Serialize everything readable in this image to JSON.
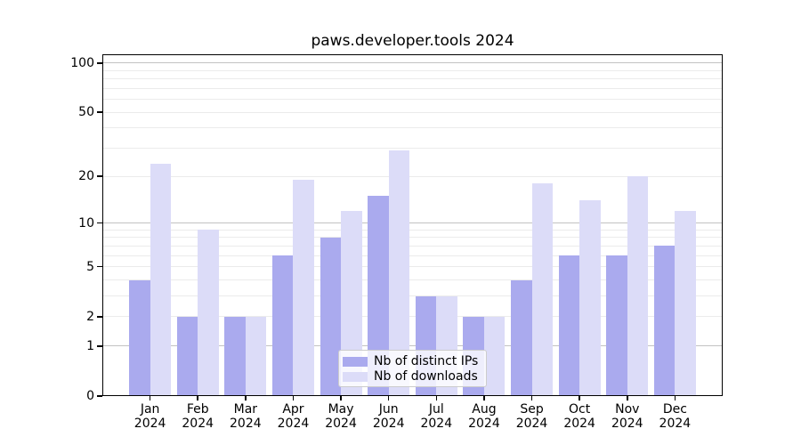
{
  "chart_data": {
    "type": "bar",
    "title": "paws.developer.tools 2024",
    "categories": [
      "Jan",
      "Feb",
      "Mar",
      "Apr",
      "May",
      "Jun",
      "Jul",
      "Aug",
      "Sep",
      "Oct",
      "Nov",
      "Dec"
    ],
    "x_year": "2024",
    "series": [
      {
        "name": "Nb of distinct IPs",
        "color": "#aaaaee",
        "values": [
          4,
          2,
          2,
          6,
          8,
          15,
          3,
          2,
          4,
          6,
          6,
          7
        ]
      },
      {
        "name": "Nb of downloads",
        "color": "#dcdcf8",
        "values": [
          24,
          9,
          2,
          19,
          12,
          29,
          3,
          2,
          18,
          14,
          20,
          12
        ]
      }
    ],
    "yscale": "log1p",
    "ylim": [
      0,
      113
    ],
    "yticks": [
      0,
      1,
      2,
      5,
      10,
      20,
      50,
      100
    ],
    "ytick_labels": [
      "0",
      "1",
      "2",
      "5",
      "10",
      "20",
      "50",
      "100"
    ],
    "gridlines_major": [
      1,
      10,
      100
    ],
    "gridlines_minor": [
      2,
      3,
      4,
      5,
      6,
      7,
      8,
      9,
      20,
      30,
      40,
      50,
      60,
      70,
      80,
      90
    ],
    "grid": true,
    "legend_position": "lower center",
    "colors": {
      "grid_major": "#c2c2c2",
      "grid_minor": "#ebebeb",
      "spine": "#000000",
      "text": "#000000",
      "background": "#ffffff"
    }
  }
}
